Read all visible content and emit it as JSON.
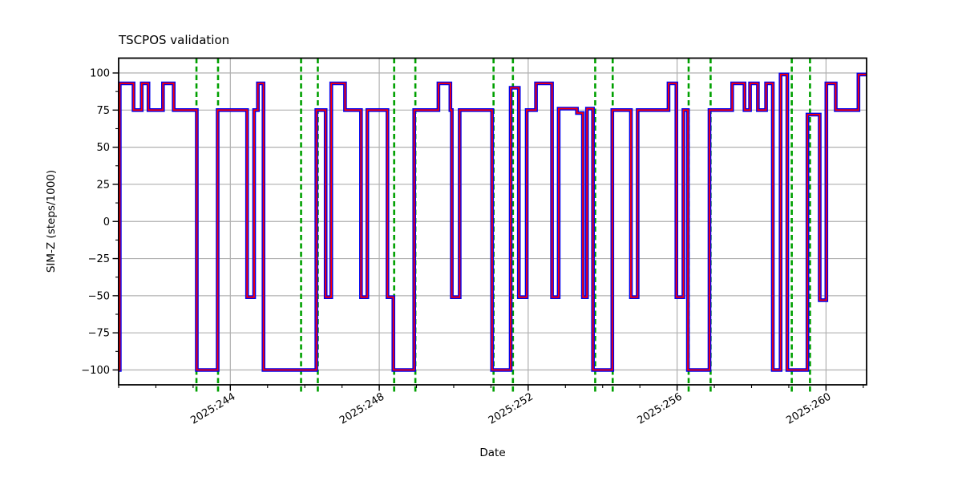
{
  "figure": {
    "background": "#ffffff",
    "grid_color": "#b0b0b0",
    "spine_color": "#000000"
  },
  "chart_data": {
    "type": "line",
    "subtype": "step-post",
    "title": "TSCPOS validation",
    "xlabel": "Date",
    "ylabel": "SIM-Z (steps/1000)",
    "xlim": [
      241.0,
      261.09
    ],
    "ylim": [
      -110,
      110
    ],
    "grid": true,
    "legend": "none",
    "x_major_ticks": [
      244,
      248,
      252,
      256,
      260
    ],
    "x_major_labels": [
      "2025:244",
      "2025:248",
      "2025:252",
      "2025:256",
      "2025:260"
    ],
    "x_minor_step_days": 1,
    "y_major_ticks": [
      100,
      75,
      50,
      25,
      0,
      -25,
      -50,
      -75,
      -100
    ],
    "y_major_labels": [
      "100",
      "75",
      "50",
      "25",
      "0",
      "−25",
      "−50",
      "−75",
      "−100"
    ],
    "y_minor_ticks": [
      87.5,
      62.5,
      37.5,
      12.5,
      -12.5,
      -37.5,
      -62.5,
      -87.5
    ],
    "series": [
      {
        "name": "sim-z-telemetry",
        "color": "#0000ee",
        "width": 4.6
      },
      {
        "name": "sim-z-validation-overlay",
        "color": "#ff0000",
        "width": 1.8
      }
    ],
    "steps": [
      [
        241.0,
        -100
      ],
      [
        241.03,
        93
      ],
      [
        241.4,
        75
      ],
      [
        241.62,
        93
      ],
      [
        241.8,
        75
      ],
      [
        242.19,
        93
      ],
      [
        242.48,
        75
      ],
      [
        243.1,
        -100
      ],
      [
        243.66,
        75
      ],
      [
        244.45,
        -51
      ],
      [
        244.64,
        75
      ],
      [
        244.74,
        93
      ],
      [
        244.89,
        -100
      ],
      [
        246.31,
        75
      ],
      [
        246.56,
        -51
      ],
      [
        246.71,
        93
      ],
      [
        247.08,
        75
      ],
      [
        247.51,
        -51
      ],
      [
        247.68,
        75
      ],
      [
        248.22,
        -51
      ],
      [
        248.38,
        -100
      ],
      [
        248.94,
        75
      ],
      [
        249.59,
        93
      ],
      [
        249.91,
        75
      ],
      [
        249.95,
        -51
      ],
      [
        250.16,
        75
      ],
      [
        251.03,
        -100
      ],
      [
        251.53,
        90
      ],
      [
        251.75,
        -51
      ],
      [
        251.96,
        75
      ],
      [
        252.21,
        93
      ],
      [
        252.64,
        -51
      ],
      [
        252.82,
        76
      ],
      [
        253.31,
        73
      ],
      [
        253.47,
        -51
      ],
      [
        253.58,
        76
      ],
      [
        253.74,
        -100
      ],
      [
        254.26,
        75
      ],
      [
        254.76,
        -51
      ],
      [
        254.94,
        75
      ],
      [
        255.77,
        93
      ],
      [
        255.98,
        -51
      ],
      [
        256.17,
        75
      ],
      [
        256.29,
        -100
      ],
      [
        256.87,
        75
      ],
      [
        257.48,
        93
      ],
      [
        257.81,
        75
      ],
      [
        257.96,
        93
      ],
      [
        258.17,
        75
      ],
      [
        258.39,
        93
      ],
      [
        258.57,
        -100
      ],
      [
        258.78,
        99
      ],
      [
        258.96,
        -100
      ],
      [
        259.5,
        72
      ],
      [
        259.83,
        -53
      ],
      [
        260.01,
        93
      ],
      [
        260.26,
        75
      ],
      [
        260.87,
        99
      ]
    ],
    "vlines": {
      "name": "event-vlines",
      "color": "#00a000",
      "style": "dashed",
      "dash": [
        6.5,
        4
      ],
      "width": 2.6,
      "x": [
        243.09,
        243.67,
        245.9,
        246.35,
        248.4,
        248.97,
        251.07,
        251.59,
        253.8,
        254.27,
        256.31,
        256.9,
        259.08,
        259.57
      ]
    }
  }
}
